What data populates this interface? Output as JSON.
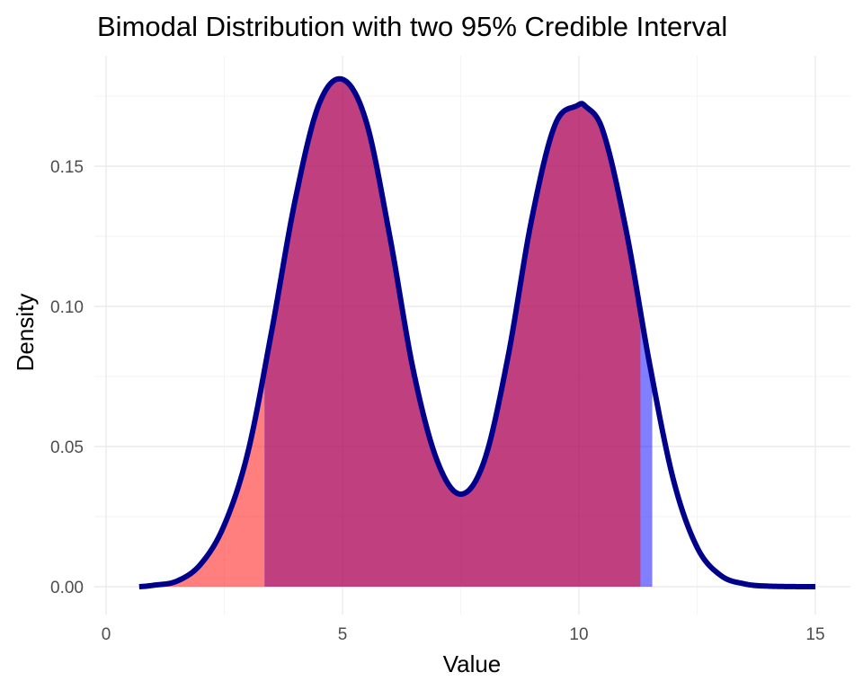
{
  "chart_data": {
    "type": "area",
    "title": "Bimodal Distribution with two 95% Credible Interval",
    "xlabel": "Value",
    "ylabel": "Density",
    "xlim": [
      0,
      15
    ],
    "ylim": [
      -0.008,
      0.19
    ],
    "x_ticks": [
      0,
      5,
      10,
      15
    ],
    "x_tick_labels": [
      "0",
      "5",
      "10",
      "15"
    ],
    "y_ticks": [
      0.0,
      0.05,
      0.1,
      0.15
    ],
    "y_tick_labels": [
      "0.00",
      "0.05",
      "0.10",
      "0.15"
    ],
    "grid": true,
    "legend": "none",
    "density_curve": {
      "color": "#00008b",
      "x": [
        0.7,
        1.0,
        1.5,
        2.0,
        2.5,
        3.0,
        3.5,
        4.0,
        4.5,
        5.0,
        5.5,
        6.0,
        6.5,
        7.0,
        7.5,
        8.0,
        8.5,
        9.0,
        9.5,
        10.0,
        10.1,
        10.5,
        11.0,
        11.5,
        12.0,
        12.5,
        13.0,
        13.5,
        14.0,
        15.0
      ],
      "y": [
        0.0,
        0.0005,
        0.002,
        0.008,
        0.022,
        0.048,
        0.091,
        0.138,
        0.172,
        0.181,
        0.166,
        0.125,
        0.077,
        0.045,
        0.033,
        0.045,
        0.082,
        0.131,
        0.165,
        0.172,
        0.172,
        0.163,
        0.127,
        0.079,
        0.038,
        0.014,
        0.004,
        0.001,
        0.0002,
        0.0
      ]
    },
    "credible_intervals": [
      {
        "lower": 0.7,
        "upper": 3.35,
        "color": "#ff0000",
        "opacity": 0.5
      },
      {
        "lower": 3.35,
        "upper": 11.55,
        "color": "#0000ff",
        "opacity": 0.5
      }
    ]
  }
}
